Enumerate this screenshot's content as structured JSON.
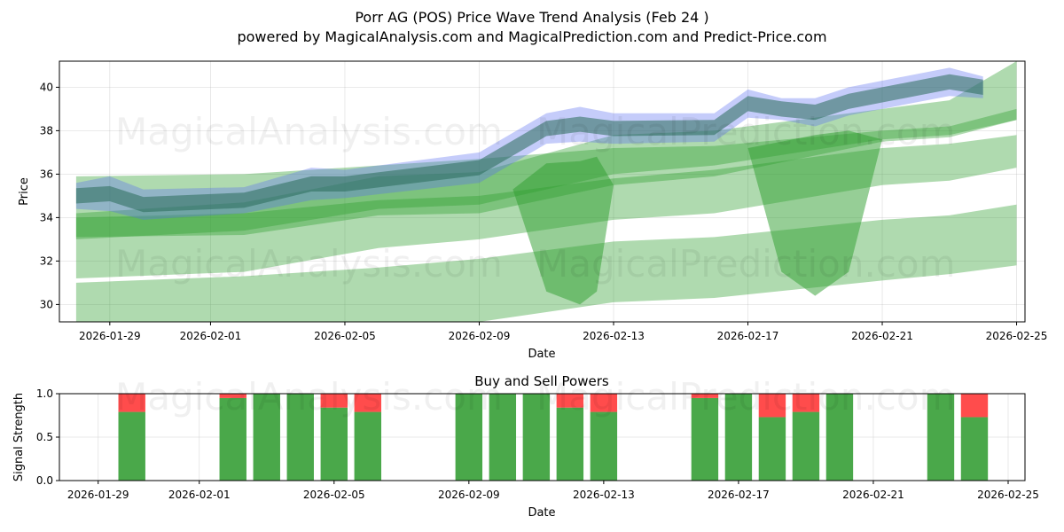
{
  "header": {
    "title": "Porr AG (POS) Price Wave Trend Analysis (Feb 24 )",
    "subtitle": "powered by MagicalAnalysis.com and MagicalPrediction.com and Predict-Price.com"
  },
  "watermarks": {
    "left": "MagicalAnalysis.com",
    "right": "MagicalPrediction.com"
  },
  "colors": {
    "green_band": "#2e9e2e",
    "blue_band": "#5a6cf0",
    "buy": "#4aa84a",
    "sell": "#ff4c4c"
  },
  "chart_data": [
    {
      "type": "area",
      "title": "",
      "xlabel": "Date",
      "ylabel": "Price",
      "x_range": [
        "2026-01-27T12:00",
        "2026-02-25T06:00"
      ],
      "ylim": [
        29.2,
        41.2
      ],
      "grid": true,
      "x_ticks": [
        "2026-01-29",
        "2026-02-01",
        "2026-02-05",
        "2026-02-09",
        "2026-02-13",
        "2026-02-17",
        "2026-02-21",
        "2026-02-25"
      ],
      "y_ticks": [
        30,
        32,
        34,
        36,
        38,
        40
      ],
      "green_bands": [
        {
          "dates": [
            "2026-01-28",
            "2026-02-02",
            "2026-02-06",
            "2026-02-09",
            "2026-02-13",
            "2026-02-16",
            "2026-02-21",
            "2026-02-23",
            "2026-02-25"
          ],
          "upper": [
            31.0,
            31.3,
            31.7,
            32.1,
            32.9,
            33.1,
            33.9,
            34.1,
            34.6
          ],
          "lower": [
            29.0,
            29.0,
            29.0,
            29.2,
            30.1,
            30.3,
            31.1,
            31.4,
            31.8
          ]
        },
        {
          "dates": [
            "2026-01-28",
            "2026-02-02",
            "2026-02-06",
            "2026-02-09",
            "2026-02-13",
            "2026-02-16",
            "2026-02-21",
            "2026-02-23",
            "2026-02-25"
          ],
          "upper": [
            34.0,
            34.2,
            34.8,
            35.0,
            35.8,
            36.2,
            37.2,
            37.4,
            37.8
          ],
          "lower": [
            31.2,
            31.5,
            32.6,
            33.0,
            33.9,
            34.2,
            35.5,
            35.7,
            36.3
          ]
        },
        {
          "dates": [
            "2026-01-28",
            "2026-02-02",
            "2026-02-06",
            "2026-02-09",
            "2026-02-13",
            "2026-02-16",
            "2026-02-21",
            "2026-02-23",
            "2026-02-25"
          ],
          "upper": [
            35.9,
            36.0,
            36.4,
            36.7,
            37.2,
            37.3,
            38.0,
            38.2,
            39.0
          ],
          "lower": [
            33.1,
            33.2,
            34.1,
            34.2,
            35.5,
            35.9,
            37.5,
            37.7,
            38.5
          ]
        },
        {
          "dates": [
            "2026-01-28",
            "2026-02-02",
            "2026-02-06",
            "2026-02-09",
            "2026-02-13",
            "2026-02-16",
            "2026-02-21",
            "2026-02-23",
            "2026-02-25"
          ],
          "upper": [
            34.2,
            34.7,
            35.9,
            36.1,
            37.8,
            38.0,
            39.0,
            39.4,
            41.2
          ],
          "lower": [
            33.0,
            33.4,
            34.4,
            34.6,
            36.0,
            36.4,
            37.6,
            37.8,
            38.5
          ]
        },
        {
          "dates": [
            "2026-02-10",
            "2026-02-11",
            "2026-02-12",
            "2026-02-12T12:00",
            "2026-02-13"
          ],
          "upper": [
            35.3,
            36.5,
            36.6,
            36.8,
            35.5
          ],
          "lower": [
            35.3,
            30.6,
            30.0,
            30.6,
            35.5
          ]
        },
        {
          "dates": [
            "2026-02-17",
            "2026-02-18",
            "2026-02-19",
            "2026-02-20",
            "2026-02-21"
          ],
          "upper": [
            37.2,
            37.5,
            37.8,
            38.0,
            37.6
          ],
          "lower": [
            37.2,
            31.5,
            30.4,
            31.5,
            37.6
          ]
        }
      ],
      "blue_band": {
        "dates": [
          "2026-01-28",
          "2026-01-29",
          "2026-01-30",
          "2026-02-02",
          "2026-02-04",
          "2026-02-05",
          "2026-02-09",
          "2026-02-11",
          "2026-02-12",
          "2026-02-13",
          "2026-02-16",
          "2026-02-17",
          "2026-02-18",
          "2026-02-19",
          "2026-02-20",
          "2026-02-23",
          "2026-02-24"
        ],
        "upper": [
          35.6,
          35.9,
          35.3,
          35.4,
          36.3,
          36.2,
          37.0,
          38.8,
          39.1,
          38.8,
          38.8,
          39.9,
          39.5,
          39.5,
          40.0,
          40.9,
          40.5
        ],
        "lower": [
          34.4,
          34.3,
          33.9,
          34.2,
          34.8,
          34.9,
          35.6,
          37.4,
          37.5,
          37.4,
          37.5,
          38.6,
          38.5,
          38.2,
          38.7,
          39.6,
          39.5
        ]
      }
    },
    {
      "type": "bar",
      "title": "Buy and Sell Powers",
      "xlabel": "Date",
      "ylabel": "Signal Strength",
      "ylim": [
        0.0,
        1.0
      ],
      "grid": true,
      "x_ticks": [
        "2026-01-29",
        "2026-02-01",
        "2026-02-05",
        "2026-02-09",
        "2026-02-13",
        "2026-02-17",
        "2026-02-21",
        "2026-02-25"
      ],
      "y_ticks": [
        "0.0",
        "0.5",
        "1.0"
      ],
      "bars": [
        {
          "date": "2026-01-30",
          "buy": 0.79,
          "sell": 0.21
        },
        {
          "date": "2026-02-02",
          "buy": 0.95,
          "sell": 0.05
        },
        {
          "date": "2026-02-03",
          "buy": 1.0,
          "sell": 0.0
        },
        {
          "date": "2026-02-04",
          "buy": 1.0,
          "sell": 0.0
        },
        {
          "date": "2026-02-05",
          "buy": 0.84,
          "sell": 0.16
        },
        {
          "date": "2026-02-06",
          "buy": 0.79,
          "sell": 0.21
        },
        {
          "date": "2026-02-09",
          "buy": 1.0,
          "sell": 0.0
        },
        {
          "date": "2026-02-10",
          "buy": 1.0,
          "sell": 0.0
        },
        {
          "date": "2026-02-11",
          "buy": 1.0,
          "sell": 0.0
        },
        {
          "date": "2026-02-12",
          "buy": 0.84,
          "sell": 0.16
        },
        {
          "date": "2026-02-13",
          "buy": 0.79,
          "sell": 0.21
        },
        {
          "date": "2026-02-16",
          "buy": 0.95,
          "sell": 0.05
        },
        {
          "date": "2026-02-17",
          "buy": 1.0,
          "sell": 0.0
        },
        {
          "date": "2026-02-18",
          "buy": 0.73,
          "sell": 0.27
        },
        {
          "date": "2026-02-19",
          "buy": 0.79,
          "sell": 0.21
        },
        {
          "date": "2026-02-20",
          "buy": 1.0,
          "sell": 0.0
        },
        {
          "date": "2026-02-23",
          "buy": 1.0,
          "sell": 0.0
        },
        {
          "date": "2026-02-24",
          "buy": 0.73,
          "sell": 0.27
        }
      ]
    }
  ]
}
